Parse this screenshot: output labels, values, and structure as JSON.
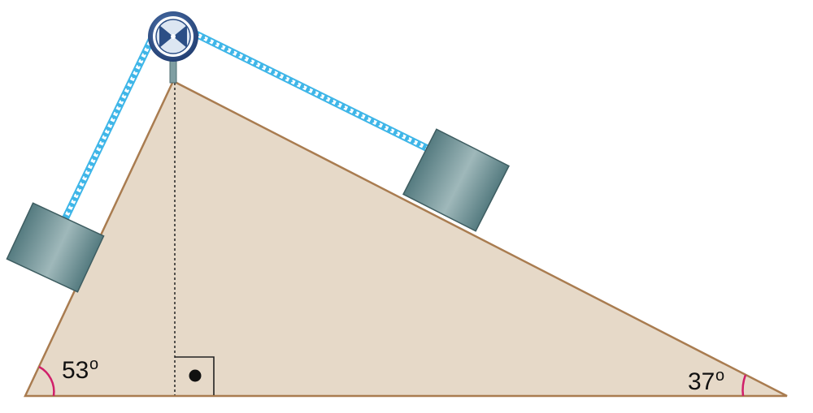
{
  "angles": {
    "left": {
      "value": "53",
      "degree": "o"
    },
    "right": {
      "value": "37",
      "degree": "o"
    }
  },
  "colors": {
    "incline_fill": "#e6d9c8",
    "incline_edge": "#a97c50",
    "rope": "#3fb6e8",
    "arc": "#d0206a",
    "pulley_rim": "#2c4f86",
    "block": "#6f9296"
  },
  "icons": {
    "pulley": "pulley-wheel",
    "block_left": "block",
    "block_right": "block",
    "right_angle": "right-angle-marker"
  }
}
